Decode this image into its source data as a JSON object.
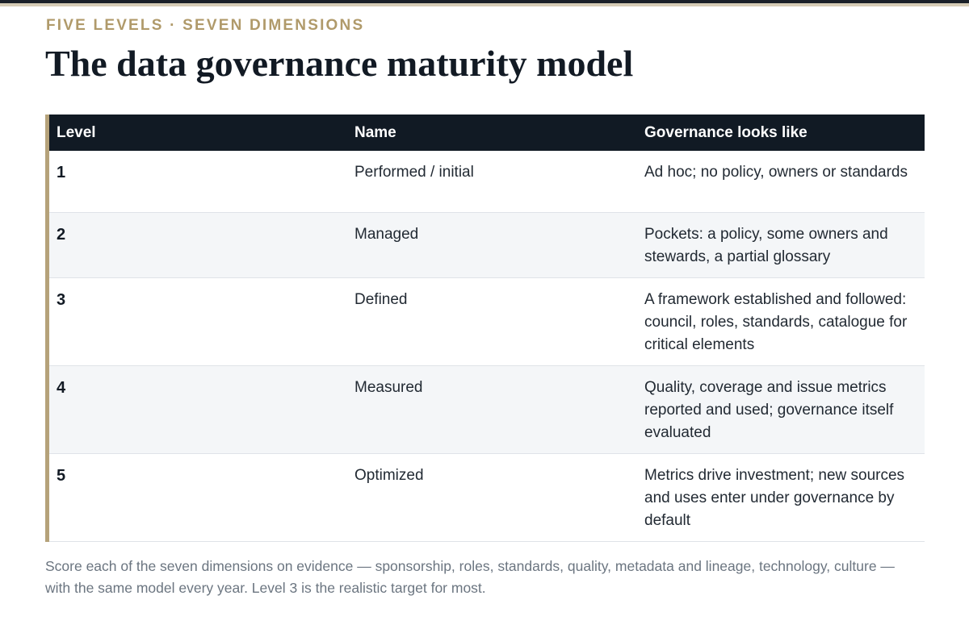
{
  "kicker": "FIVE LEVELS · SEVEN DIMENSIONS",
  "title": "The data governance maturity model",
  "table": {
    "headers": [
      "Level",
      "Name",
      "Governance looks like"
    ],
    "rows": [
      {
        "level": "1",
        "name": "Performed / initial",
        "description": "Ad hoc; no policy, owners or standards"
      },
      {
        "level": "2",
        "name": "Managed",
        "description": "Pockets: a policy, some owners and stewards, a partial glossary"
      },
      {
        "level": "3",
        "name": "Defined",
        "description": "A framework established and followed: council, roles, standards, catalogue for critical elements"
      },
      {
        "level": "4",
        "name": "Measured",
        "description": "Quality, coverage and issue metrics reported and used; governance itself evaluated"
      },
      {
        "level": "5",
        "name": "Optimized",
        "description": "Metrics drive investment; new sources and uses enter under governance by default"
      }
    ]
  },
  "note": "Score each of the seven dimensions on evidence — sponsorship, roles, standards, quality, metadata and lineage, technology, culture — with the same model every year. Level 3 is the realistic target for most.",
  "colors": {
    "accent": "#b5a27a",
    "header_bg": "#111a24",
    "row_shade": "#f4f6f8"
  }
}
